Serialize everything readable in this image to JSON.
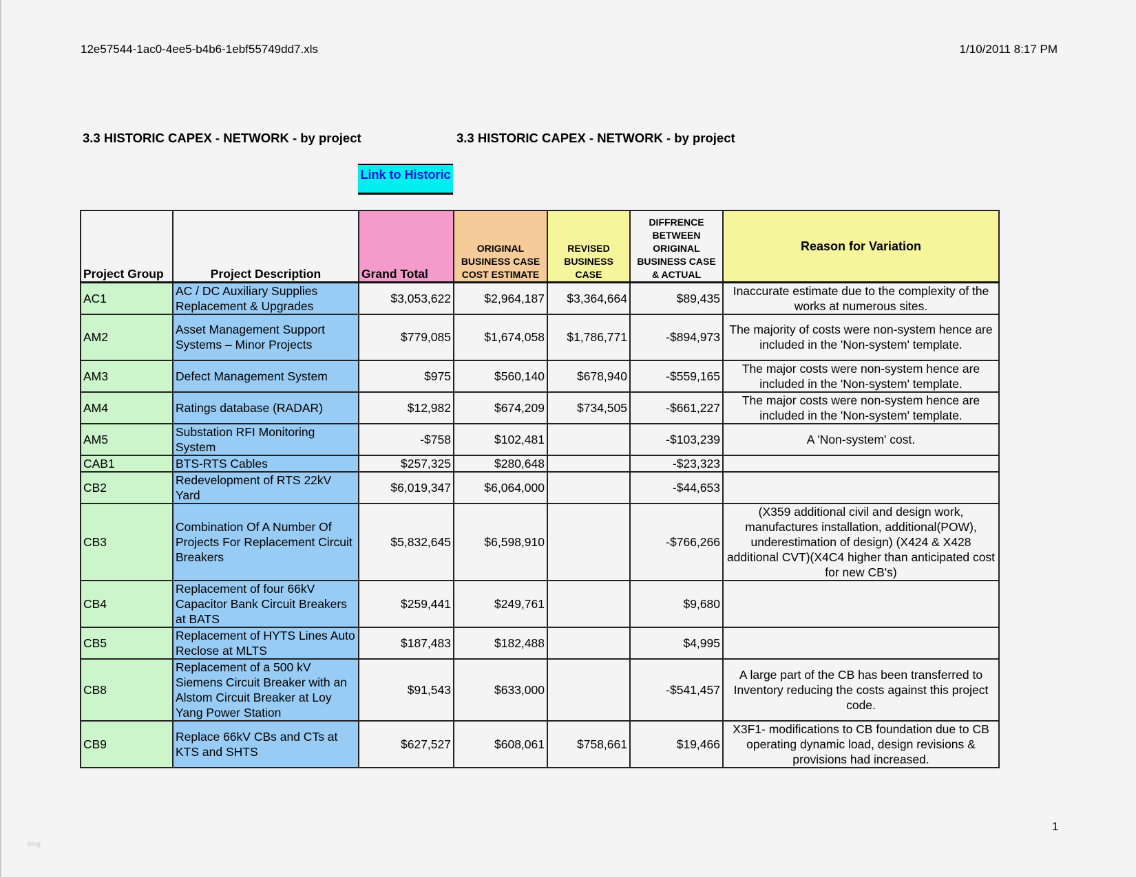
{
  "header": {
    "filename": "12e57544-1ac0-4ee5-b4b6-1ebf55749dd7.xls",
    "datetime": "1/10/2011 8:17 PM"
  },
  "titles": [
    "3.3 HISTORIC CAPEX - NETWORK - by project",
    "3.3 HISTORIC CAPEX - NETWORK - by project"
  ],
  "link_button": {
    "label": "Link to Historic"
  },
  "columns": [
    "Project Group",
    "Project Description",
    "Grand Total",
    "ORIGINAL BUSINESS CASE COST ESTIMATE",
    "REVISED BUSINESS CASE",
    "DIFFRENCE BETWEEN ORIGINAL BUSINESS CASE & ACTUAL",
    "Reason for Variation"
  ],
  "colors": {
    "group": "#ccf5cc",
    "description": "#99ccf5",
    "grand_total": "#f49bcc",
    "original": "#f5cc99",
    "revised": "#f5f59b",
    "reason": "#f5f59b",
    "link": "#00eef0"
  },
  "rows": [
    {
      "group": "AC1",
      "description": "AC / DC Auxiliary Supplies Replacement & Upgrades",
      "grand_total": "$3,053,622",
      "original": "$2,964,187",
      "revised": "$3,364,664",
      "difference": "$89,435",
      "reason": "Inaccurate estimate due to the complexity of the works at numerous sites."
    },
    {
      "group": "AM2",
      "description": "Asset Management Support Systems – Minor Projects",
      "grand_total": "$779,085",
      "original": "$1,674,058",
      "revised": "$1,786,771",
      "difference": "-$894,973",
      "reason": "The majority of costs were non-system hence are included in the 'Non-system' template."
    },
    {
      "group": "AM3",
      "description": "Defect Management System",
      "grand_total": "$975",
      "original": "$560,140",
      "revised": "$678,940",
      "difference": "-$559,165",
      "reason": "The major costs were non-system hence are included in the 'Non-system' template."
    },
    {
      "group": "AM4",
      "description": "Ratings database (RADAR)",
      "grand_total": "$12,982",
      "original": "$674,209",
      "revised": "$734,505",
      "difference": "-$661,227",
      "reason": "The major costs were non-system hence are included in the 'Non-system' template."
    },
    {
      "group": "AM5",
      "description": "Substation RFI Monitoring System",
      "grand_total": "-$758",
      "original": "$102,481",
      "revised": "",
      "difference": "-$103,239",
      "reason": "A 'Non-system' cost."
    },
    {
      "group": "CAB1",
      "description": "BTS-RTS Cables",
      "grand_total": "$257,325",
      "original": "$280,648",
      "revised": "",
      "difference": "-$23,323",
      "reason": ""
    },
    {
      "group": "CB2",
      "description": "Redevelopment of RTS 22kV Yard",
      "grand_total": "$6,019,347",
      "original": "$6,064,000",
      "revised": "",
      "difference": "-$44,653",
      "reason": ""
    },
    {
      "group": "CB3",
      "description": "Combination Of A Number Of Projects For Replacement Circuit Breakers",
      "grand_total": "$5,832,645",
      "original": "$6,598,910",
      "revised": "",
      "difference": "-$766,266",
      "reason": "(X359 additional civil and design work, manufactures installation, additional(POW), underestimation of design) (X424 & X428 additional CVT)(X4C4 higher than anticipated cost for new CB's)"
    },
    {
      "group": "CB4",
      "description": "Replacement of four 66kV Capacitor Bank Circuit Breakers at BATS",
      "grand_total": "$259,441",
      "original": "$249,761",
      "revised": "",
      "difference": "$9,680",
      "reason": ""
    },
    {
      "group": "CB5",
      "description": "Replacement of HYTS Lines Auto Reclose at MLTS",
      "grand_total": "$187,483",
      "original": "$182,488",
      "revised": "",
      "difference": "$4,995",
      "reason": ""
    },
    {
      "group": "CB8",
      "description": "Replacement of a 500 kV Siemens Circuit Breaker with an Alstom Circuit Breaker at Loy Yang Power Station",
      "grand_total": "$91,543",
      "original": "$633,000",
      "revised": "",
      "difference": "-$541,457",
      "reason": "A large part of the CB has been transferred to Inventory reducing the costs against this project code."
    },
    {
      "group": "CB9",
      "description": "Replace 66kV CBs and CTs at KTS and SHTS",
      "grand_total": "$627,527",
      "original": "$608,061",
      "revised": "$758,661",
      "difference": "$19,466",
      "reason": "X3F1- modifications to CB foundation due to CB operating dynamic load, design revisions & provisions had increased."
    }
  ],
  "footer": {
    "page_number": "1",
    "watermark": "blog"
  }
}
